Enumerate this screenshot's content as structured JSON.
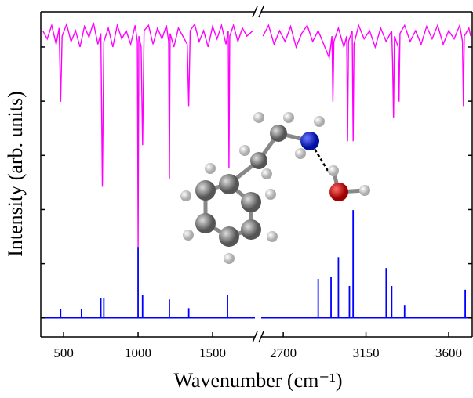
{
  "chart_data": [
    {
      "type": "line",
      "xlabel": "Wavenumber (cm⁻¹)",
      "ylabel": "Intensity (arb. units)",
      "xlim": [
        347,
        1784
      ],
      "xticks": [
        500,
        1000,
        1500
      ],
      "ylim": [
        -0.35,
        5.65
      ],
      "yticks": [
        0,
        1,
        2,
        3,
        4,
        5
      ],
      "series": [
        {
          "style": "line",
          "color": "#ff00ff",
          "x": [
            360,
            390,
            420,
            450,
            470,
            480,
            490,
            520,
            550,
            580,
            610,
            640,
            670,
            700,
            730,
            750,
            760,
            770,
            800,
            830,
            860,
            890,
            920,
            950,
            980,
            995,
            1000,
            1005,
            1020,
            1030,
            1040,
            1070,
            1100,
            1130,
            1160,
            1190,
            1205,
            1210,
            1215,
            1240,
            1270,
            1300,
            1330,
            1340,
            1350,
            1380,
            1410,
            1440,
            1470,
            1500,
            1530,
            1560,
            1590,
            1605,
            1610,
            1615,
            1640,
            1670,
            1700,
            1730,
            1770
          ],
          "values": [
            5.3,
            5.15,
            5.4,
            5.05,
            5.35,
            3.99,
            5.2,
            5.42,
            5.1,
            5.3,
            5.0,
            5.38,
            5.18,
            5.45,
            5.05,
            5.25,
            2.42,
            5.1,
            5.35,
            5.0,
            5.4,
            5.15,
            5.3,
            5.05,
            5.4,
            5.1,
            1.31,
            5.2,
            5.0,
            3.19,
            5.3,
            5.4,
            5.05,
            5.35,
            5.15,
            5.4,
            5.1,
            2.57,
            5.25,
            5.0,
            5.35,
            5.2,
            5.05,
            3.91,
            5.3,
            5.42,
            5.1,
            5.3,
            5.0,
            5.38,
            5.15,
            5.4,
            5.05,
            5.3,
            2.76,
            5.2,
            5.4,
            5.1,
            5.35,
            5.2,
            5.3
          ]
        },
        {
          "style": "stick",
          "color": "#0000ff",
          "x": [
            480,
            620,
            750,
            770,
            1000,
            1030,
            1210,
            1340,
            1600
          ],
          "values": [
            0.16,
            0.16,
            0.36,
            0.36,
            1.31,
            0.43,
            0.34,
            0.18,
            0.43
          ]
        }
      ]
    },
    {
      "type": "line",
      "xlim": [
        2580,
        3728
      ],
      "xticks": [
        2700,
        3150,
        3600
      ],
      "ylim": [
        -0.35,
        5.65
      ],
      "yticks": [
        0,
        1,
        2,
        3,
        4,
        5
      ],
      "series": [
        {
          "style": "line",
          "color": "#ff00ff",
          "x": [
            2590,
            2620,
            2650,
            2680,
            2710,
            2740,
            2770,
            2800,
            2830,
            2860,
            2890,
            2920,
            2950,
            2965,
            2970,
            2975,
            3000,
            3030,
            3045,
            3050,
            3055,
            3075,
            3080,
            3085,
            3110,
            3140,
            3170,
            3200,
            3230,
            3260,
            3290,
            3295,
            3300,
            3305,
            3325,
            3330,
            3335,
            3360,
            3390,
            3420,
            3450,
            3480,
            3510,
            3540,
            3570,
            3600,
            3630,
            3660,
            3675,
            3680,
            3685,
            3710,
            3720
          ],
          "values": [
            5.2,
            5.4,
            5.05,
            5.3,
            5.1,
            5.38,
            5.0,
            5.25,
            5.4,
            5.1,
            5.3,
            5.05,
            4.8,
            5.2,
            3.99,
            5.1,
            5.35,
            5.0,
            5.2,
            3.26,
            5.1,
            5.3,
            3.26,
            5.05,
            5.4,
            5.15,
            5.3,
            5.0,
            5.35,
            5.1,
            5.3,
            4.7,
            3.7,
            5.2,
            5.0,
            3.99,
            5.25,
            5.4,
            5.1,
            5.3,
            5.05,
            5.38,
            5.15,
            5.4,
            5.05,
            5.3,
            5.15,
            5.4,
            5.1,
            3.91,
            5.2,
            5.35,
            5.2
          ]
        },
        {
          "style": "stick",
          "color": "#0000ff",
          "x": [
            2890,
            2960,
            3000,
            3060,
            3080,
            3260,
            3290,
            3360,
            3690
          ],
          "values": [
            0.72,
            0.76,
            1.12,
            0.59,
            1.99,
            0.92,
            0.59,
            0.24,
            0.52
          ]
        }
      ]
    }
  ]
}
